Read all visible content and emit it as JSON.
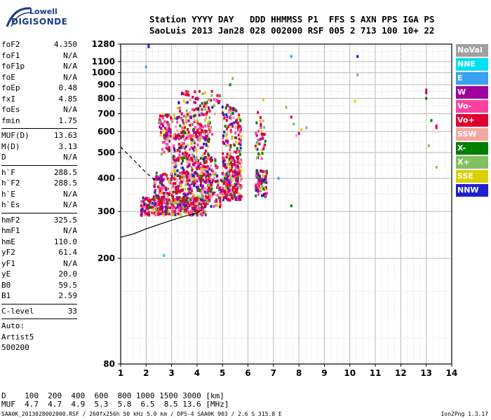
{
  "logo": {
    "line1": "Lowell",
    "line2": "DIGISONDE"
  },
  "header": {
    "row1": "Station YYYY DAY   DDD HHMMSS P1  FFS S AXN PPS IGA PS",
    "row2": "SaoLuis 2013 Jan28 028 002000 RSF 005 2 713 100 10+ 22"
  },
  "params_group1": [
    {
      "k": "foF2",
      "v": "4.350"
    },
    {
      "k": "foF1",
      "v": "N/A"
    },
    {
      "k": "foF1p",
      "v": "N/A"
    },
    {
      "k": "foE",
      "v": "N/A"
    },
    {
      "k": "foEp",
      "v": "0.48"
    },
    {
      "k": "fxI",
      "v": "4.85"
    },
    {
      "k": "foEs",
      "v": "N/A"
    },
    {
      "k": "fmin",
      "v": "1.75"
    }
  ],
  "params_group2": [
    {
      "k": "MUF(D)",
      "v": "13.63"
    },
    {
      "k": "M(D)",
      "v": "3.13"
    },
    {
      "k": "D",
      "v": "N/A"
    }
  ],
  "params_group3": [
    {
      "k": "h`F",
      "v": "288.5"
    },
    {
      "k": "h`F2",
      "v": "288.5"
    },
    {
      "k": "h`E",
      "v": "N/A"
    },
    {
      "k": "h`Es",
      "v": "N/A"
    }
  ],
  "params_group4": [
    {
      "k": "hmF2",
      "v": "325.5"
    },
    {
      "k": "hmF1",
      "v": "N/A"
    },
    {
      "k": "hmE",
      "v": "110.0"
    },
    {
      "k": "yF2",
      "v": "61.4"
    },
    {
      "k": "yF1",
      "v": "N/A"
    },
    {
      "k": "yE",
      "v": "20.0"
    },
    {
      "k": "B0",
      "v": "59.5"
    },
    {
      "k": "B1",
      "v": "2.59"
    }
  ],
  "params_group5": [
    {
      "k": "C-level",
      "v": "33"
    }
  ],
  "auto": {
    "line1": "Auto:",
    "line2": "Artist5",
    "line3": "500200"
  },
  "legend": [
    {
      "label": "NoVal",
      "color": "#a0a0a0"
    },
    {
      "label": "NNE",
      "color": "#00e0f0"
    },
    {
      "label": "E",
      "color": "#3aa0f0"
    },
    {
      "label": "W",
      "color": "#a000a0"
    },
    {
      "label": "Vo-",
      "color": "#ff40a0"
    },
    {
      "label": "Vo+",
      "color": "#e00030"
    },
    {
      "label": "SSW",
      "color": "#f0a8a0"
    },
    {
      "label": "X-",
      "color": "#008000"
    },
    {
      "label": "X+",
      "color": "#80c060"
    },
    {
      "label": "SSE",
      "color": "#d8d000"
    },
    {
      "label": "NNW",
      "color": "#2020d0"
    }
  ],
  "dmuf": {
    "row1": "D    100  200  400  600  800 1000 1500 3000 [km]",
    "row2": "MUF  4.7  4.7  4.9  5.3  5.8  6.5  8.5 13.6 [MHz]"
  },
  "footer": "SAA0K_2013028002000.RSF / 260fx256h 50 kHz 5.0 km / DPS-4 SAA0K 903 / 2.6 S 315.8 E",
  "version": "Ion2Png 1.3.17",
  "chart_data": {
    "type": "scatter",
    "title": "",
    "xlabel": "",
    "ylabel": "",
    "xlim": [
      1,
      14
    ],
    "ylim": [
      80,
      1280
    ],
    "xticks": [
      1,
      2,
      3,
      4,
      5,
      6,
      7,
      8,
      9,
      10,
      11,
      12,
      13,
      14
    ],
    "yticks": [
      80,
      200,
      300,
      400,
      500,
      600,
      700,
      800,
      900,
      1000,
      1100,
      1280
    ],
    "y_scale": "log",
    "grid": true,
    "trace_solid": {
      "x": [
        1.0,
        1.5,
        2.0,
        2.5,
        3.0,
        3.5,
        4.0,
        4.2
      ],
      "y": [
        240,
        247,
        258,
        268,
        278,
        288,
        296,
        305
      ]
    },
    "trace_dashed": {
      "x": [
        1.0,
        1.5,
        2.0,
        2.4
      ],
      "y": [
        525,
        470,
        420,
        390
      ]
    },
    "points": [
      {
        "x": 2.1,
        "y": 1270,
        "c": "W"
      },
      {
        "x": 2.1,
        "y": 1250,
        "c": "NNW"
      },
      {
        "x": 2.0,
        "y": 1050,
        "c": "E"
      },
      {
        "x": 7.7,
        "y": 1150,
        "c": "E"
      },
      {
        "x": 10.3,
        "y": 1150,
        "c": "NNW"
      },
      {
        "x": 10.3,
        "y": 980,
        "c": "X+"
      },
      {
        "x": 13.0,
        "y": 860,
        "c": "Vo+"
      },
      {
        "x": 13.0,
        "y": 840,
        "c": "W"
      },
      {
        "x": 13.0,
        "y": 800,
        "c": "X-"
      },
      {
        "x": 13.2,
        "y": 660,
        "c": "X-"
      },
      {
        "x": 13.4,
        "y": 630,
        "c": "Vo+"
      },
      {
        "x": 13.4,
        "y": 620,
        "c": "Vo+"
      },
      {
        "x": 13.1,
        "y": 530,
        "c": "X+"
      },
      {
        "x": 13.4,
        "y": 440,
        "c": "X+"
      },
      {
        "x": 7.7,
        "y": 315,
        "c": "X-"
      },
      {
        "x": 2.7,
        "y": 205,
        "c": "NNE"
      },
      {
        "x": 7.2,
        "y": 400,
        "c": "E"
      },
      {
        "x": 5.4,
        "y": 950,
        "c": "X+"
      },
      {
        "x": 5.3,
        "y": 900,
        "c": "X-"
      },
      {
        "x": 6.6,
        "y": 790,
        "c": "SSE"
      },
      {
        "x": 7.5,
        "y": 740,
        "c": "X+"
      },
      {
        "x": 7.7,
        "y": 680,
        "c": "Vo+"
      },
      {
        "x": 7.8,
        "y": 640,
        "c": "X+"
      },
      {
        "x": 8.1,
        "y": 610,
        "c": "SSE"
      },
      {
        "x": 8.3,
        "y": 620,
        "c": "X+"
      },
      {
        "x": 7.9,
        "y": 580,
        "c": "SSW"
      },
      {
        "x": 10.2,
        "y": 780,
        "c": "SSE"
      },
      {
        "x": 8.0,
        "y": 590,
        "c": "W"
      }
    ],
    "clusters": [
      {
        "x": [
          1.8,
          4.4
        ],
        "y": [
          290,
          340
        ],
        "n": 380
      },
      {
        "x": [
          2.3,
          4.6
        ],
        "y": [
          330,
          420
        ],
        "n": 300
      },
      {
        "x": [
          3.0,
          4.8
        ],
        "y": [
          400,
          480
        ],
        "n": 160
      },
      {
        "x": [
          2.6,
          4.5
        ],
        "y": [
          470,
          580
        ],
        "n": 130
      },
      {
        "x": [
          2.5,
          4.6
        ],
        "y": [
          560,
          700
        ],
        "n": 180
      },
      {
        "x": [
          3.2,
          4.9
        ],
        "y": [
          690,
          850
        ],
        "n": 70
      },
      {
        "x": [
          5.0,
          5.75
        ],
        "y": [
          330,
          470
        ],
        "n": 220
      },
      {
        "x": [
          5.0,
          5.75
        ],
        "y": [
          460,
          760
        ],
        "n": 130
      },
      {
        "x": [
          6.3,
          6.75
        ],
        "y": [
          340,
          430
        ],
        "n": 70
      },
      {
        "x": [
          6.3,
          6.7
        ],
        "y": [
          470,
          720
        ],
        "n": 40
      },
      {
        "x": [
          4.4,
          5.0
        ],
        "y": [
          310,
          400
        ],
        "n": 60
      }
    ]
  }
}
